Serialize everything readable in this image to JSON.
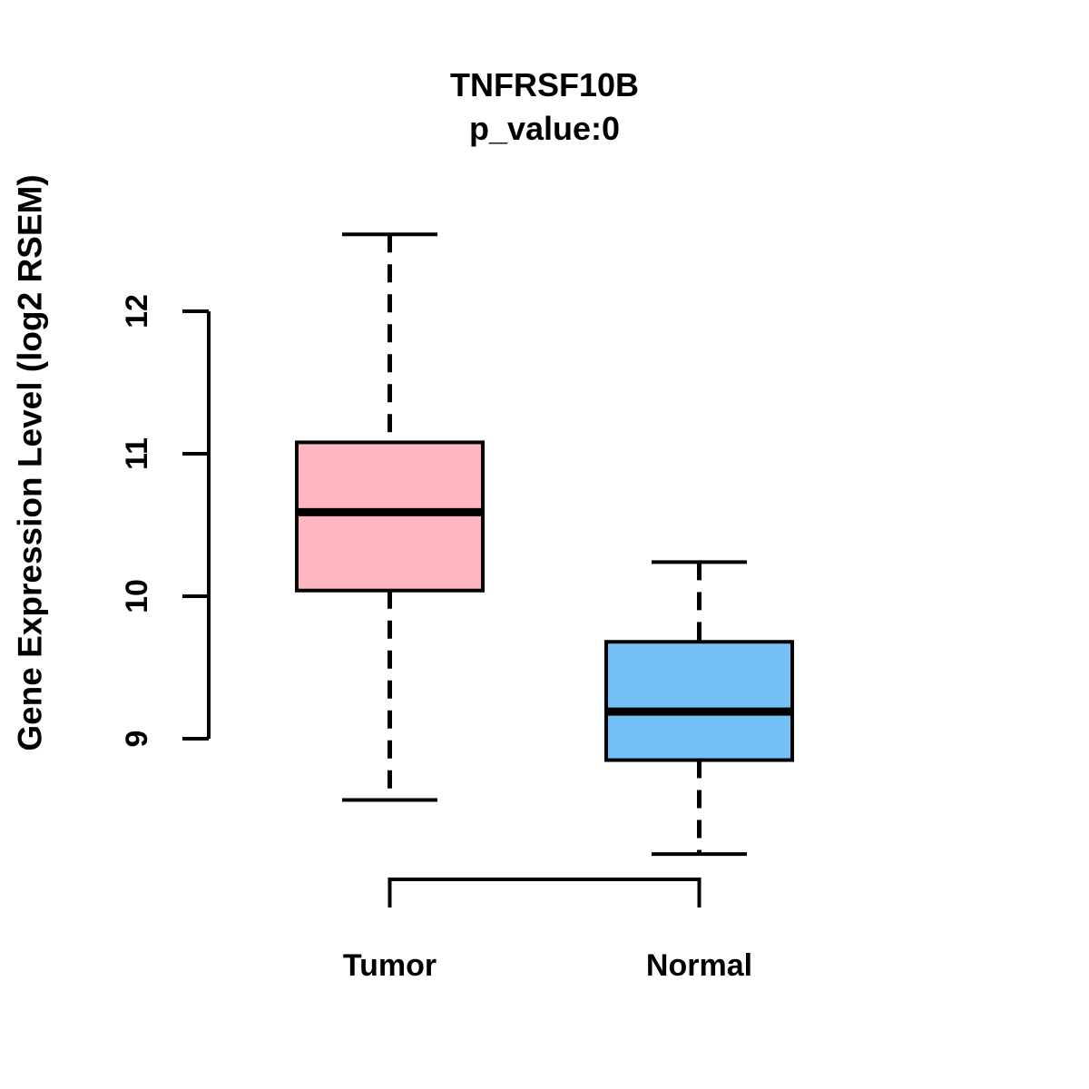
{
  "chart_data": {
    "type": "boxplot",
    "title": "TNFRSF10B",
    "subtitle": "p_value:0",
    "ylabel": "Gene Expression Level (log2 RSEM)",
    "xlabel": "",
    "categories": [
      "Tumor",
      "Normal"
    ],
    "y_axis_ticks": [
      9,
      10,
      11,
      12
    ],
    "y_axis_range": [
      9,
      12
    ],
    "grid": false,
    "legend": false,
    "box_border_color": "#000000",
    "median_color": "#000000",
    "whisker_style": "dashed",
    "series": [
      {
        "name": "Tumor",
        "fill_color": "#FFB6C1",
        "whisker_low": 8.57,
        "q1": 10.04,
        "median": 10.59,
        "q3": 11.08,
        "whisker_high": 12.54
      },
      {
        "name": "Normal",
        "fill_color": "#74C0F7",
        "whisker_low": 8.19,
        "q1": 8.85,
        "median": 9.19,
        "q3": 9.68,
        "whisker_high": 10.24
      }
    ]
  }
}
